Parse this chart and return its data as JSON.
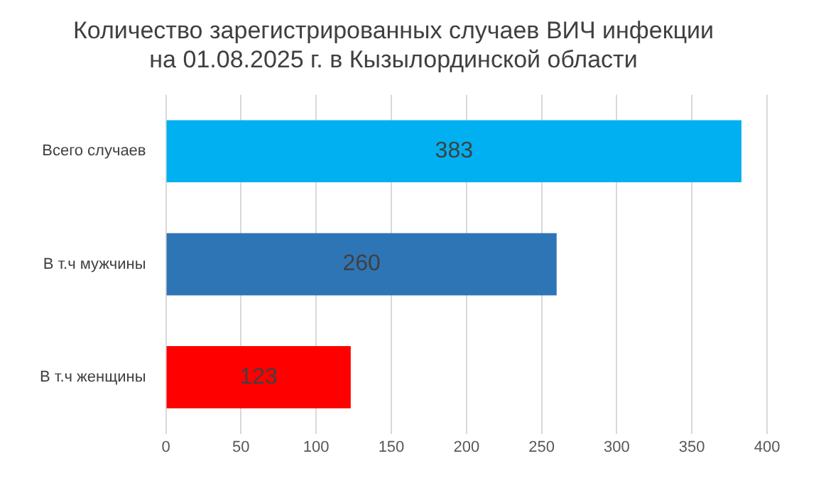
{
  "chart_data": {
    "type": "bar",
    "orientation": "horizontal",
    "title": [
      "Количество зарегистрированных случаев ВИЧ инфекции",
      "на 01.08.2025 г. в Кызылординской области"
    ],
    "categories": [
      "Всего случаев",
      "В т.ч мужчины",
      "В т.ч женщины"
    ],
    "values": [
      383,
      260,
      123
    ],
    "colors": [
      "#00b0f0",
      "#2e75b6",
      "#ff0000"
    ],
    "xlim": [
      0,
      400
    ],
    "xticks": [
      0,
      50,
      100,
      150,
      200,
      250,
      300,
      350,
      400
    ],
    "grid": "x",
    "data_labels": true,
    "legend": false
  }
}
